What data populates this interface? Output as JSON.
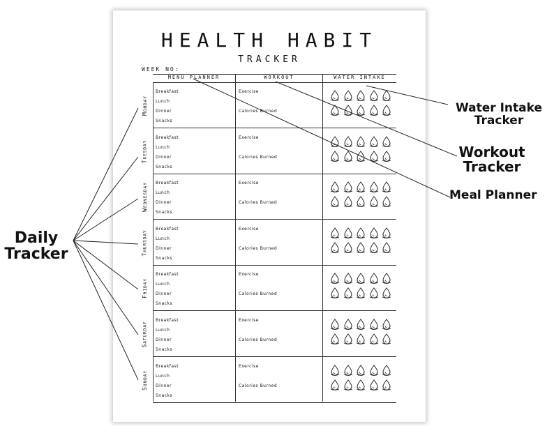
{
  "sheet": {
    "title": "HEALTH HABIT",
    "subtitle": "TRACKER",
    "week_label": "WEEK NO:",
    "columns": [
      "MENU PLANNER",
      "WORKOUT",
      "WATER INTAKE"
    ]
  },
  "meals": [
    "Breakfast",
    "Lunch",
    "Dinner",
    "Snacks"
  ],
  "workout_fields": [
    "Exercise",
    "Calories Burned"
  ],
  "days": [
    "Monday",
    "Tuesday",
    "Wednesday",
    "Thursday",
    "Friday",
    "Saturday",
    "Sunday"
  ],
  "water_drops_per_day": 10,
  "annotations": {
    "water": "Water Intake Tracker",
    "workout": "Workout Tracker",
    "meal": "Meal Planner",
    "daily": "Daily Tracker"
  }
}
